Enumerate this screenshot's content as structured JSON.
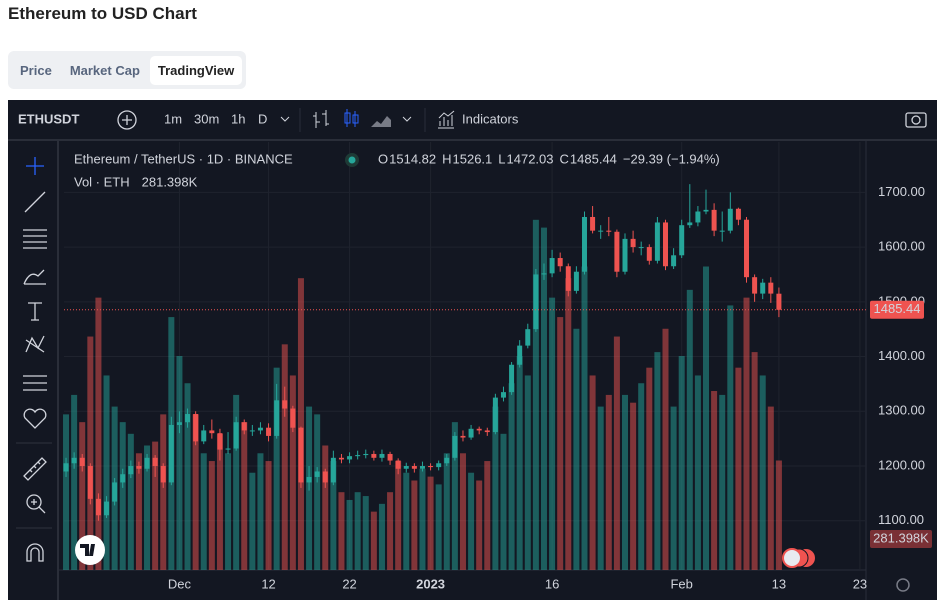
{
  "page": {
    "title": "Ethereum to USD Chart",
    "tabs": [
      "Price",
      "Market Cap",
      "TradingView"
    ],
    "active_tab": 2
  },
  "toolbar": {
    "symbol": "ETHUSDT",
    "intervals": [
      "1m",
      "30m",
      "1h",
      "D"
    ],
    "indicators": "Indicators"
  },
  "legend": {
    "name": "Ethereum / TetherUS · 1D · BINANCE",
    "o": "O",
    "h": "H",
    "l": "L",
    "c": "C",
    "change": "−29.39 (−1.94%)",
    "volume": "Vol · ETH",
    "volume_label": "281.398K"
  },
  "chart_data": {
    "type": "candlestick",
    "open": [
      1190,
      1205,
      1215,
      1200,
      1140,
      1110,
      1135,
      1170,
      1185,
      1200,
      1195,
      1215,
      1200,
      1170,
      1275,
      1280,
      1295,
      1245,
      1265,
      1260,
      1230,
      1232,
      1280,
      1265,
      1265,
      1270,
      1255,
      1320,
      1305,
      1270,
      1170,
      1180,
      1190,
      1170,
      1215,
      1212,
      1218,
      1220,
      1222,
      1215,
      1222,
      1210,
      1195,
      1200,
      1195,
      1200,
      1198,
      1205,
      1215,
      1255,
      1252,
      1268,
      1265,
      1262,
      1325,
      1335,
      1385,
      1420,
      1450,
      1550,
      1552,
      1580,
      1565,
      1520,
      1555,
      1655,
      1630,
      1630,
      1628,
      1555,
      1615,
      1600,
      1600,
      1575,
      1645,
      1565,
      1585,
      1640,
      1645,
      1665,
      1668,
      1630,
      1630,
      1670,
      1650,
      1545,
      1515,
      1535,
      1514.82
    ],
    "high": [
      1215,
      1225,
      1222,
      1205,
      1150,
      1145,
      1178,
      1195,
      1210,
      1208,
      1222,
      1220,
      1205,
      1290,
      1300,
      1305,
      1300,
      1275,
      1285,
      1268,
      1262,
      1290,
      1285,
      1275,
      1280,
      1278,
      1350,
      1345,
      1310,
      1272,
      1200,
      1198,
      1195,
      1228,
      1222,
      1225,
      1228,
      1230,
      1228,
      1230,
      1226,
      1214,
      1206,
      1205,
      1208,
      1205,
      1210,
      1222,
      1262,
      1265,
      1275,
      1272,
      1270,
      1332,
      1345,
      1390,
      1430,
      1460,
      1560,
      1570,
      1595,
      1590,
      1570,
      1565,
      1665,
      1675,
      1640,
      1655,
      1632,
      1625,
      1630,
      1610,
      1605,
      1655,
      1650,
      1598,
      1650,
      1715,
      1675,
      1705,
      1680,
      1665,
      1700,
      1672,
      1655,
      1550,
      1542,
      1545,
      1526.1
    ],
    "low": [
      1180,
      1195,
      1190,
      1130,
      1100,
      1105,
      1128,
      1160,
      1178,
      1186,
      1190,
      1180,
      1160,
      1165,
      1260,
      1270,
      1238,
      1240,
      1250,
      1210,
      1222,
      1228,
      1258,
      1255,
      1258,
      1245,
      1250,
      1290,
      1262,
      1160,
      1155,
      1170,
      1160,
      1165,
      1205,
      1205,
      1212,
      1214,
      1210,
      1208,
      1202,
      1185,
      1188,
      1188,
      1190,
      1192,
      1192,
      1200,
      1210,
      1245,
      1248,
      1258,
      1255,
      1258,
      1318,
      1330,
      1380,
      1415,
      1445,
      1540,
      1545,
      1555,
      1510,
      1515,
      1550,
      1625,
      1615,
      1620,
      1545,
      1550,
      1590,
      1585,
      1568,
      1570,
      1558,
      1560,
      1580,
      1635,
      1638,
      1660,
      1620,
      1610,
      1625,
      1640,
      1535,
      1500,
      1505,
      1498,
      1472.03
    ],
    "close": [
      1205,
      1215,
      1200,
      1140,
      1110,
      1135,
      1170,
      1185,
      1200,
      1195,
      1215,
      1200,
      1170,
      1275,
      1280,
      1295,
      1245,
      1265,
      1260,
      1230,
      1232,
      1280,
      1265,
      1265,
      1270,
      1255,
      1320,
      1305,
      1270,
      1170,
      1180,
      1190,
      1170,
      1215,
      1212,
      1218,
      1220,
      1222,
      1215,
      1222,
      1210,
      1195,
      1200,
      1195,
      1200,
      1198,
      1205,
      1215,
      1255,
      1252,
      1268,
      1265,
      1262,
      1325,
      1335,
      1385,
      1420,
      1450,
      1550,
      1552,
      1580,
      1565,
      1520,
      1555,
      1655,
      1630,
      1630,
      1628,
      1555,
      1615,
      1600,
      1600,
      1575,
      1645,
      1565,
      1585,
      1640,
      1645,
      1665,
      1668,
      1630,
      1630,
      1670,
      1650,
      1545,
      1515,
      1535,
      1515,
      1485.44
    ],
    "volume": [
      400,
      450,
      380,
      600,
      700,
      500,
      420,
      380,
      350,
      300,
      320,
      330,
      400,
      650,
      550,
      480,
      400,
      300,
      280,
      350,
      300,
      450,
      380,
      250,
      300,
      280,
      520,
      580,
      500,
      750,
      420,
      400,
      320,
      280,
      200,
      180,
      200,
      190,
      150,
      170,
      200,
      280,
      250,
      230,
      260,
      240,
      220,
      300,
      380,
      300,
      250,
      230,
      280,
      420,
      350,
      480,
      550,
      500,
      900,
      880,
      700,
      650,
      750,
      620,
      780,
      500,
      420,
      450,
      600,
      450,
      430,
      480,
      520,
      560,
      620,
      420,
      550,
      720,
      500,
      780,
      460,
      450,
      680,
      520,
      700,
      560,
      500,
      420,
      281.398
    ],
    "ylim": [
      1010,
      1792
    ],
    "yticks": [
      {
        "value": 1100,
        "label": "1100.00"
      },
      {
        "value": 1200,
        "label": "1200.00"
      },
      {
        "value": 1300,
        "label": "1300.00"
      },
      {
        "value": 1400,
        "label": "1400.00"
      },
      {
        "value": 1500,
        "label": "1500.00"
      },
      {
        "value": 1600,
        "label": "1600.00"
      },
      {
        "value": 1700,
        "label": "1700.00"
      }
    ],
    "xlim": [
      -0.25,
      98.75
    ],
    "xticks": [
      {
        "value": 14,
        "label": "Dec"
      },
      {
        "value": 25,
        "label": "12"
      },
      {
        "value": 35,
        "label": "22"
      },
      {
        "value": 45,
        "label": "2023"
      },
      {
        "value": 60,
        "label": "16"
      },
      {
        "value": 76,
        "label": "Feb"
      },
      {
        "value": 88,
        "label": "13"
      },
      {
        "value": 98,
        "label": "23"
      }
    ],
    "vlim": [
      0,
      1100
    ],
    "up_color": "#26a69a",
    "down_color": "#ef5350",
    "grid": true
  }
}
